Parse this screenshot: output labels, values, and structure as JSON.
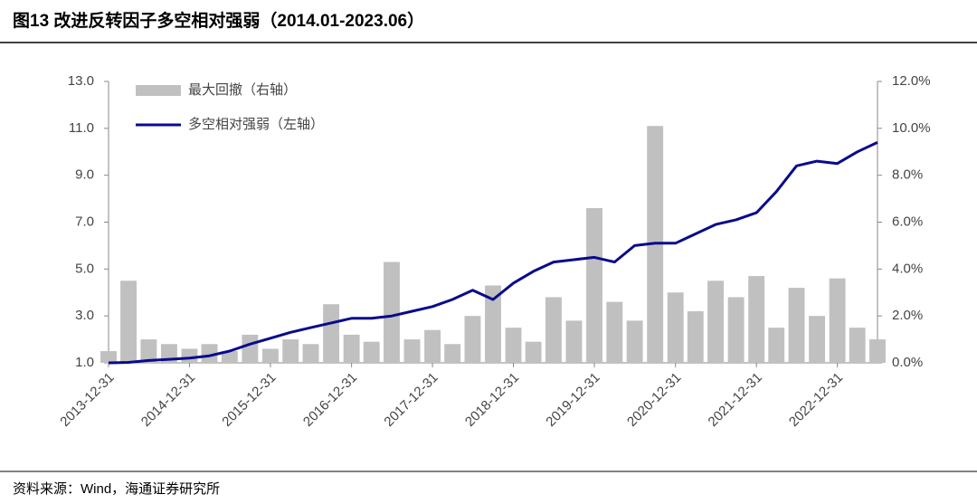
{
  "chart_data": {
    "type": "line",
    "title": "图13 改进反转因子多空相对强弱（2014.01-2023.06）",
    "source": "资料来源：Wind，海通证券研究所",
    "x": [
      "2013-12-31",
      "2014-03-31",
      "2014-06-30",
      "2014-09-30",
      "2014-12-31",
      "2015-03-31",
      "2015-06-30",
      "2015-09-30",
      "2015-12-31",
      "2016-03-31",
      "2016-06-30",
      "2016-09-30",
      "2016-12-31",
      "2017-03-31",
      "2017-06-30",
      "2017-09-30",
      "2017-12-31",
      "2018-03-31",
      "2018-06-30",
      "2018-09-30",
      "2018-12-31",
      "2019-03-31",
      "2019-06-30",
      "2019-09-30",
      "2019-12-31",
      "2020-03-31",
      "2020-06-30",
      "2020-09-30",
      "2020-12-31",
      "2021-03-31",
      "2021-06-30",
      "2021-09-30",
      "2021-12-31",
      "2022-03-31",
      "2022-06-30",
      "2022-09-30",
      "2022-12-31",
      "2023-03-31",
      "2023-06-30"
    ],
    "xlim": [
      "2013-12-31",
      "2023-06-30"
    ],
    "xticks": [
      "2013-12-31",
      "2014-12-31",
      "2015-12-31",
      "2016-12-31",
      "2017-12-31",
      "2018-12-31",
      "2019-12-31",
      "2020-12-31",
      "2021-12-31",
      "2022-12-31"
    ],
    "series": [
      {
        "name": "最大回撤（右轴）",
        "type": "bar",
        "axis": "y2",
        "color": "#c0c0c0",
        "values": [
          0.5,
          3.5,
          1.0,
          0.8,
          0.6,
          0.8,
          0.5,
          1.2,
          0.6,
          1.0,
          0.8,
          2.5,
          1.2,
          0.9,
          4.3,
          1.0,
          1.4,
          0.8,
          2.0,
          3.3,
          1.5,
          0.9,
          2.8,
          1.8,
          6.6,
          2.6,
          1.8,
          10.1,
          3.0,
          2.2,
          3.5,
          2.8,
          3.7,
          1.5,
          3.2,
          2.0,
          3.6,
          1.5,
          1.0
        ]
      },
      {
        "name": "多空相对强弱（左轴）",
        "type": "line",
        "color": "#0a0a8c",
        "values": [
          1.0,
          1.02,
          1.1,
          1.15,
          1.2,
          1.3,
          1.5,
          1.8,
          2.05,
          2.3,
          2.5,
          2.7,
          2.9,
          2.9,
          3.0,
          3.2,
          3.4,
          3.7,
          4.1,
          3.7,
          4.4,
          4.9,
          5.3,
          5.4,
          5.5,
          5.3,
          6.0,
          6.1,
          6.1,
          6.5,
          6.9,
          7.1,
          7.4,
          8.3,
          9.4,
          9.6,
          9.5,
          10.0,
          10.4
        ]
      }
    ],
    "ylim": [
      1,
      13
    ],
    "yticks": [
      {
        "value": 1,
        "label": "1.0"
      },
      {
        "value": 3,
        "label": "3.0"
      },
      {
        "value": 5,
        "label": "5.0"
      },
      {
        "value": 7,
        "label": "7.0"
      },
      {
        "value": 9,
        "label": "9.0"
      },
      {
        "value": 11,
        "label": "11.0"
      },
      {
        "value": 13,
        "label": "13.0"
      }
    ],
    "y2lim": [
      0,
      12
    ],
    "y2ticks": [
      {
        "value": 0,
        "label": "0.0%"
      },
      {
        "value": 2,
        "label": "2.0%"
      },
      {
        "value": 4,
        "label": "4.0%"
      },
      {
        "value": 6,
        "label": "6.0%"
      },
      {
        "value": 8,
        "label": "8.0%"
      },
      {
        "value": 10,
        "label": "10.0%"
      },
      {
        "value": 12,
        "label": "12.0%"
      }
    ],
    "legend": "upper left"
  }
}
